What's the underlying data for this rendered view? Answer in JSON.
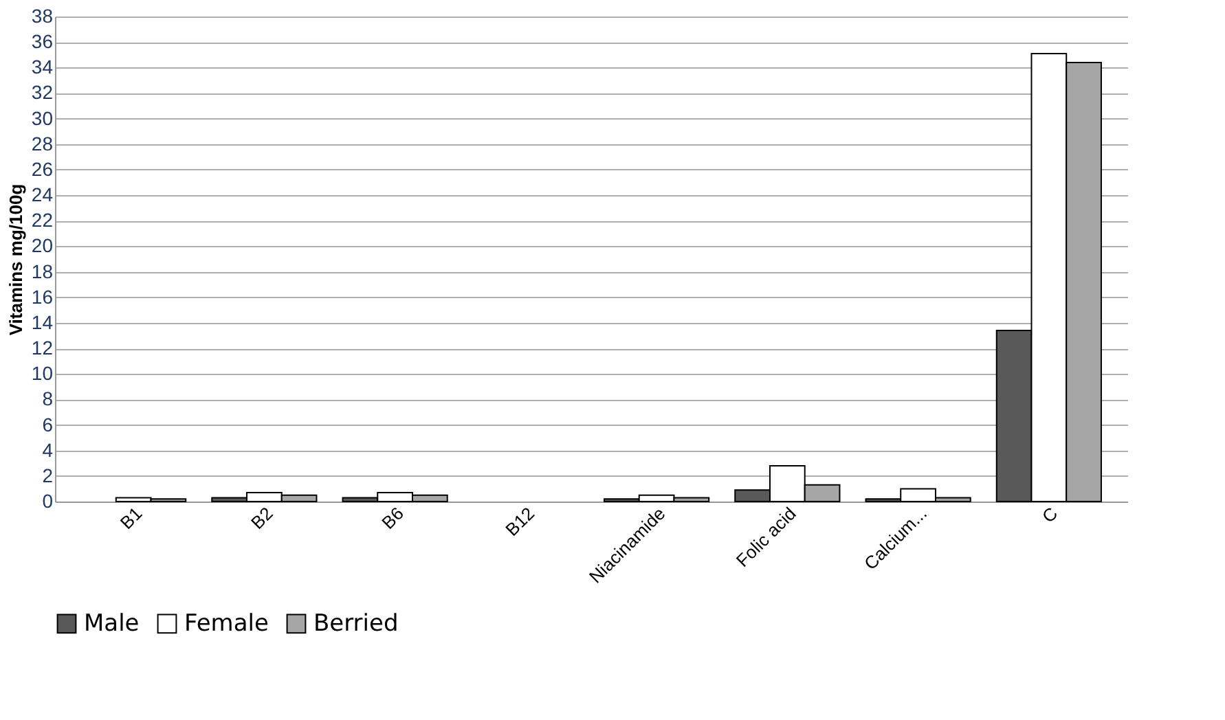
{
  "chart_data": {
    "type": "bar",
    "ylabel": "Vitamins mg/100g",
    "categories": [
      "B1",
      "B2",
      "B6",
      "B12",
      "Niacinamide",
      "Folic acid",
      "Calcium...",
      "C"
    ],
    "series": [
      {
        "name": "Male",
        "color": "#595959",
        "values": [
          0.0,
          0.3,
          0.3,
          0.0,
          0.2,
          0.9,
          0.2,
          13.4
        ]
      },
      {
        "name": "Female",
        "color": "#ffffff",
        "values": [
          0.3,
          0.7,
          0.7,
          0.0,
          0.5,
          2.8,
          1.0,
          35.1
        ]
      },
      {
        "name": "Berried",
        "color": "#a6a6a6",
        "values": [
          0.2,
          0.5,
          0.5,
          0.0,
          0.3,
          1.3,
          0.3,
          34.4
        ]
      }
    ],
    "ylim": [
      0,
      38
    ],
    "yticks": [
      0,
      2,
      4,
      6,
      8,
      10,
      12,
      14,
      16,
      18,
      20,
      22,
      24,
      26,
      28,
      30,
      32,
      34,
      36,
      38
    ],
    "grid": "y",
    "legend": "bottom"
  }
}
